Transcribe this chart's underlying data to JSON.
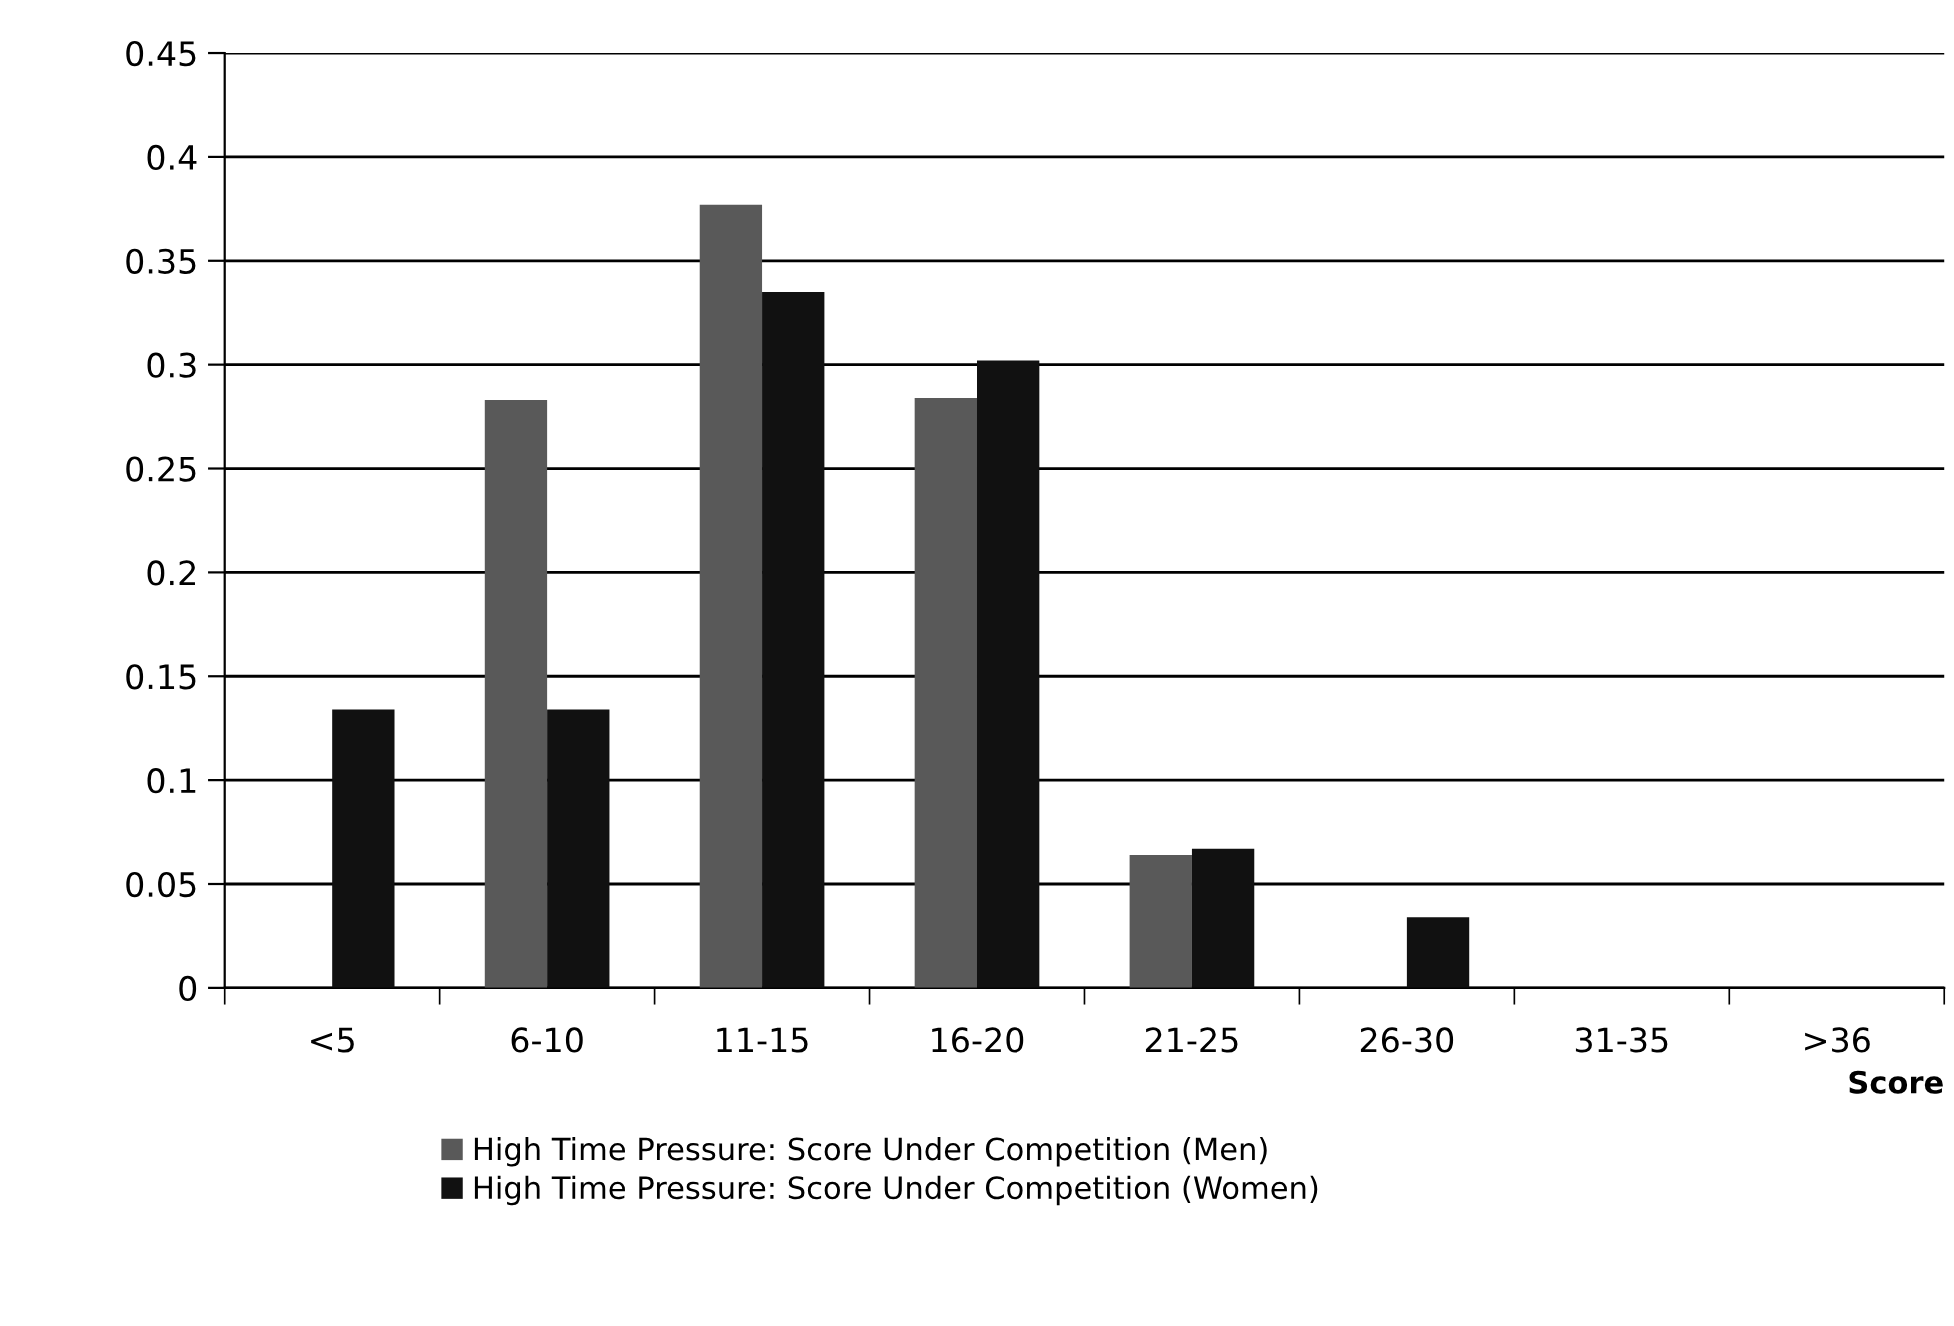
{
  "chart_data": {
    "type": "bar",
    "xlabel": "Score",
    "categories": [
      "<5",
      "6-10",
      "11-15",
      "16-20",
      "21-25",
      "26-30",
      "31-35",
      ">36"
    ],
    "series": [
      {
        "name": "High Time Pressure: Score Under Competition (Men)",
        "color": "#595959",
        "values": [
          0,
          0.283,
          0.377,
          0.284,
          0.064,
          0,
          0,
          0
        ]
      },
      {
        "name": "High Time Pressure: Score Under Competition (Women)",
        "color": "#111111",
        "values": [
          0.134,
          0.134,
          0.335,
          0.302,
          0.067,
          0.034,
          0,
          0
        ]
      }
    ],
    "ylim": [
      0,
      0.45
    ],
    "yticks": [
      0,
      0.05,
      0.1,
      0.15,
      0.2,
      0.25,
      0.3,
      0.35,
      0.4,
      0.45
    ],
    "grid": "y",
    "legend": "bottom"
  }
}
